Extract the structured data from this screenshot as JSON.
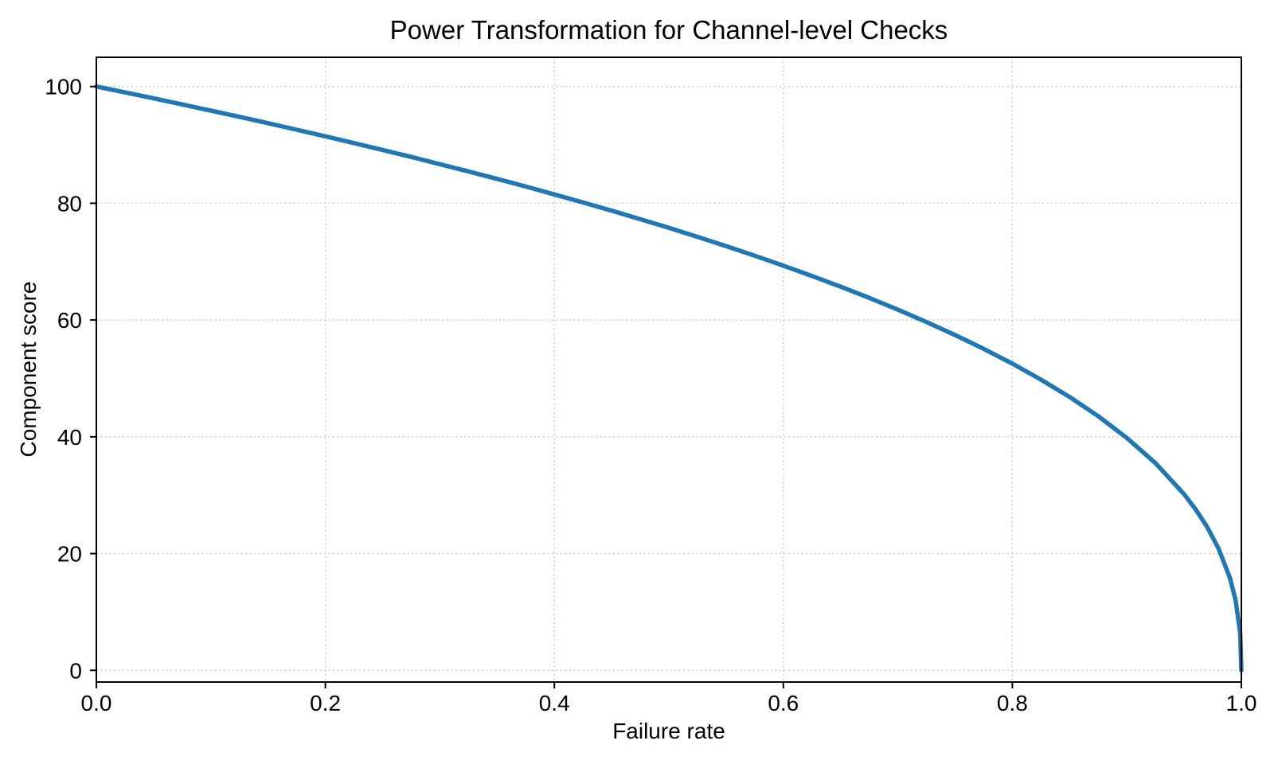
{
  "page": {
    "background": "#ffffff",
    "text_color": "#000000",
    "grid_color": "#cbcbcb"
  },
  "chart_data": {
    "type": "line",
    "title": "Power Transformation for Channel-level Checks",
    "xlabel": "Failure rate",
    "ylabel": "Component score",
    "xlim": [
      0,
      1
    ],
    "ylim": [
      -2,
      105
    ],
    "x_ticks": [
      0.0,
      0.2,
      0.4,
      0.6,
      0.8,
      1.0
    ],
    "x_tick_labels": [
      "0.0",
      "0.2",
      "0.4",
      "0.6",
      "0.8",
      "1.0"
    ],
    "y_ticks": [
      0,
      20,
      40,
      60,
      80,
      100
    ],
    "y_tick_labels": [
      "0",
      "20",
      "40",
      "60",
      "80",
      "100"
    ],
    "grid": true,
    "grid_style": "dotted",
    "legend": false,
    "series": [
      {
        "name": "component score",
        "color": "#1f77b4",
        "line_width": 5.5,
        "points": [
          [
            0.0,
            100.0
          ],
          [
            0.025,
            98.99
          ],
          [
            0.05,
            97.97
          ],
          [
            0.075,
            96.93
          ],
          [
            0.1,
            95.87
          ],
          [
            0.125,
            94.8
          ],
          [
            0.15,
            93.71
          ],
          [
            0.175,
            92.59
          ],
          [
            0.2,
            91.46
          ],
          [
            0.225,
            90.31
          ],
          [
            0.25,
            89.13
          ],
          [
            0.275,
            87.93
          ],
          [
            0.3,
            86.7
          ],
          [
            0.325,
            85.45
          ],
          [
            0.35,
            84.17
          ],
          [
            0.375,
            82.86
          ],
          [
            0.4,
            81.52
          ],
          [
            0.425,
            80.14
          ],
          [
            0.45,
            78.73
          ],
          [
            0.475,
            77.28
          ],
          [
            0.5,
            75.79
          ],
          [
            0.525,
            74.25
          ],
          [
            0.55,
            72.66
          ],
          [
            0.575,
            71.02
          ],
          [
            0.6,
            69.31
          ],
          [
            0.625,
            67.55
          ],
          [
            0.65,
            65.71
          ],
          [
            0.675,
            63.79
          ],
          [
            0.7,
            61.78
          ],
          [
            0.725,
            59.67
          ],
          [
            0.75,
            57.43
          ],
          [
            0.775,
            55.06
          ],
          [
            0.8,
            52.53
          ],
          [
            0.825,
            49.8
          ],
          [
            0.85,
            46.82
          ],
          [
            0.875,
            43.53
          ],
          [
            0.9,
            39.81
          ],
          [
            0.925,
            35.48
          ],
          [
            0.95,
            30.17
          ],
          [
            0.96,
            27.59
          ],
          [
            0.97,
            24.6
          ],
          [
            0.98,
            20.91
          ],
          [
            0.99,
            15.85
          ],
          [
            0.995,
            12.01
          ],
          [
            0.999,
            6.31
          ],
          [
            1.0,
            0.0
          ]
        ]
      }
    ]
  }
}
